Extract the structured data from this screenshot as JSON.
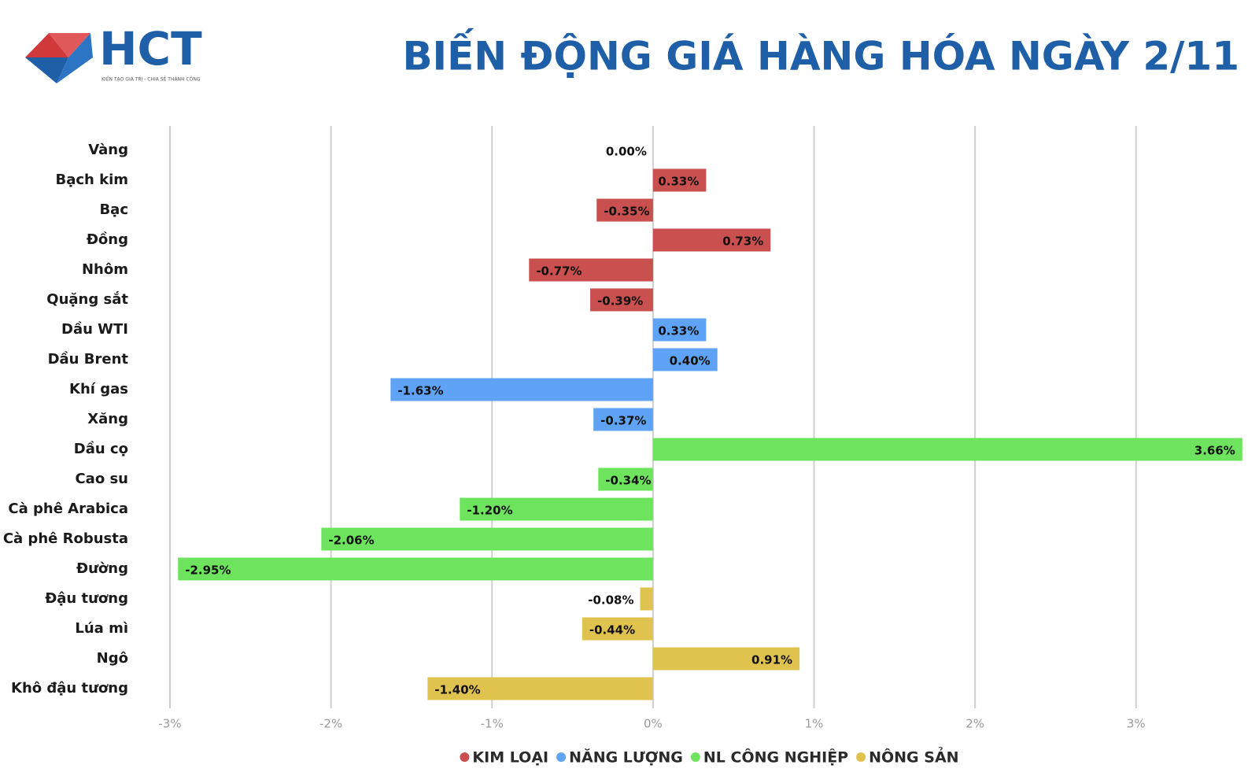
{
  "logo": {
    "text": "HCT",
    "tagline": "KIẾN TẠO GIÁ TRỊ - CHIA SẺ THÀNH CÔNG"
  },
  "chart_data": {
    "type": "barh",
    "title": "BIẾN ĐỘNG GIÁ HÀNG HÓA NGÀY 2/11",
    "categories": [
      "Vàng",
      "Bạch kim",
      "Bạc",
      "Đồng",
      "Nhôm",
      "Quặng sắt",
      "Dầu WTI",
      "Dầu Brent",
      "Khí gas",
      "Xăng",
      "Dầu cọ",
      "Cao su",
      "Cà phê Arabica",
      "Cà phê Robusta",
      "Đường",
      "Đậu tương",
      "Lúa mì",
      "Ngô",
      "Khô đậu tương"
    ],
    "series": [
      {
        "name": "KIM LOẠI",
        "color": "#c9504f",
        "values": [
          0.0,
          0.33,
          -0.35,
          0.73,
          -0.77,
          -0.39,
          null,
          null,
          null,
          null,
          null,
          null,
          null,
          null,
          null,
          null,
          null,
          null,
          null
        ],
        "value_labels": [
          "0.00%",
          "0.33%",
          "-0.35%",
          "0.73%",
          "-0.77%",
          "-0.39%",
          null,
          null,
          null,
          null,
          null,
          null,
          null,
          null,
          null,
          null,
          null,
          null,
          null
        ]
      },
      {
        "name": "NĂNG LƯỢNG",
        "color": "#5ea3f5",
        "values": [
          null,
          null,
          null,
          null,
          null,
          null,
          0.33,
          0.4,
          -1.63,
          -0.37,
          null,
          null,
          null,
          null,
          null,
          null,
          null,
          null,
          null
        ],
        "value_labels": [
          null,
          null,
          null,
          null,
          null,
          null,
          "0.33%",
          "0.40%",
          "-1.63%",
          "-0.37%",
          null,
          null,
          null,
          null,
          null,
          null,
          null,
          null,
          null
        ]
      },
      {
        "name": "NL CÔNG NGHIỆP",
        "color": "#6ee35e",
        "values": [
          null,
          null,
          null,
          null,
          null,
          null,
          null,
          null,
          null,
          null,
          3.66,
          -0.34,
          -1.2,
          -2.06,
          -2.95,
          null,
          null,
          null,
          null
        ],
        "value_labels": [
          null,
          null,
          null,
          null,
          null,
          null,
          null,
          null,
          null,
          null,
          "3.66%",
          "-0.34%",
          "-1.20%",
          "-2.06%",
          "-2.95%",
          null,
          null,
          null,
          null
        ]
      },
      {
        "name": "NÔNG SẢN",
        "color": "#e0c24e",
        "values": [
          null,
          null,
          null,
          null,
          null,
          null,
          null,
          null,
          null,
          null,
          null,
          null,
          null,
          null,
          null,
          -0.08,
          -0.44,
          0.91,
          -1.4
        ],
        "value_labels": [
          null,
          null,
          null,
          null,
          null,
          null,
          null,
          null,
          null,
          null,
          null,
          null,
          null,
          null,
          null,
          "-0.08%",
          "-0.44%",
          "0.91%",
          "-1.40%"
        ]
      }
    ],
    "xlim": [
      -3,
      3.7
    ],
    "xticks": [
      {
        "value": -3,
        "label": "-3%"
      },
      {
        "value": -2,
        "label": "-2%"
      },
      {
        "value": -1,
        "label": "-1%"
      },
      {
        "value": 0,
        "label": "0%"
      },
      {
        "value": 1,
        "label": "1%"
      },
      {
        "value": 2,
        "label": "2%"
      },
      {
        "value": 3,
        "label": "3%"
      }
    ],
    "grid": true,
    "legend": "bottom"
  }
}
